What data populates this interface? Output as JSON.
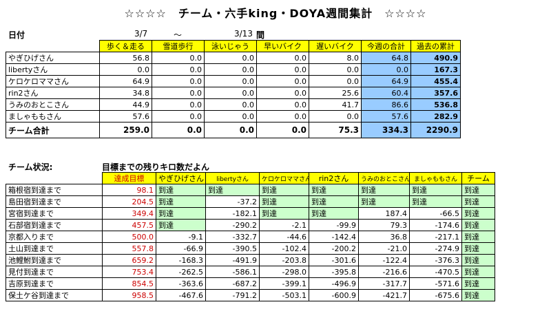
{
  "title": "☆☆☆☆　チーム・六手king・DOYA週間集計　☆☆☆☆",
  "period": {
    "label": "日付",
    "start": "3/7",
    "tilde": "～",
    "end": "3/13",
    "suffix": "間"
  },
  "weekly": {
    "headers": [
      "",
      "歩く＆走る",
      "雪道歩行",
      "泳いじゃう",
      "早いバイク",
      "遅いバイク",
      "今週の合計",
      "過去の累計"
    ],
    "rows": [
      [
        "やぎひげさん",
        "56.8",
        "0.0",
        "0.0",
        "0.0",
        "8.0",
        "64.8",
        "490.9"
      ],
      [
        "libertyさん",
        "0.0",
        "0.0",
        "0.0",
        "0.0",
        "0.0",
        "0.0",
        "167.3"
      ],
      [
        "ケロケロママさん",
        "64.9",
        "0.0",
        "0.0",
        "0.0",
        "0.0",
        "64.9",
        "455.4"
      ],
      [
        "rin2さん",
        "34.8",
        "0.0",
        "0.0",
        "0.0",
        "25.6",
        "60.4",
        "357.6"
      ],
      [
        "うみのおとこさん",
        "44.9",
        "0.0",
        "0.0",
        "0.0",
        "41.7",
        "86.6",
        "536.8"
      ],
      [
        "ましゃももさん",
        "57.6",
        "0.0",
        "0.0",
        "0.0",
        "0.0",
        "57.6",
        "282.9"
      ]
    ],
    "total": [
      "チーム合計",
      "259.0",
      "0.0",
      "0.0",
      "0.0",
      "75.3",
      "334.3",
      "2290.9"
    ]
  },
  "status": {
    "label": "チーム状況:",
    "subtitle": "目標までの残りキロ数だよん",
    "headers": [
      "",
      "達成目標",
      "やぎひげさん",
      "libertyさん",
      "ケロケロママさん",
      "rin2さん",
      "うみのおとこさん",
      "ましゃももさん",
      "チーム"
    ],
    "rows": [
      [
        "箱根宿到達まで",
        "98.1",
        "到達",
        "到達",
        "到達",
        "到達",
        "到達",
        "到達",
        "到達"
      ],
      [
        "島田宿到達まで",
        "204.5",
        "到達",
        "-37.2",
        "到達",
        "到達",
        "到達",
        "到達",
        "到達"
      ],
      [
        "宮宿到達まで",
        "349.4",
        "到達",
        "-182.1",
        "到達",
        "到達",
        "187.4",
        "-66.5",
        "到達"
      ],
      [
        "石部宿到達まで",
        "457.5",
        "到達",
        "-290.2",
        "-2.1",
        "-99.9",
        "79.3",
        "-174.6",
        "到達"
      ],
      [
        "京都入りまで",
        "500.0",
        "-9.1",
        "-332.7",
        "-44.6",
        "-142.4",
        "36.8",
        "-217.1",
        "到達"
      ],
      [
        "土山到達まで",
        "557.8",
        "-66.9",
        "-390.5",
        "-102.4",
        "-200.2",
        "-21.0",
        "-274.9",
        "到達"
      ],
      [
        "池鯉鮒到達まで",
        "659.2",
        "-168.3",
        "-491.9",
        "-203.8",
        "-301.6",
        "-122.4",
        "-376.3",
        "到達"
      ],
      [
        "見付到達まで",
        "753.4",
        "-262.5",
        "-586.1",
        "-298.0",
        "-395.8",
        "-216.6",
        "-470.5",
        "到達"
      ],
      [
        "吉原到達まで",
        "854.5",
        "-363.6",
        "-687.2",
        "-399.1",
        "-496.9",
        "-317.7",
        "-571.6",
        "到達"
      ],
      [
        "保土ケ谷到達まで",
        "958.5",
        "-467.6",
        "-791.2",
        "-503.1",
        "-600.9",
        "-421.7",
        "-675.6",
        "到達"
      ]
    ]
  }
}
